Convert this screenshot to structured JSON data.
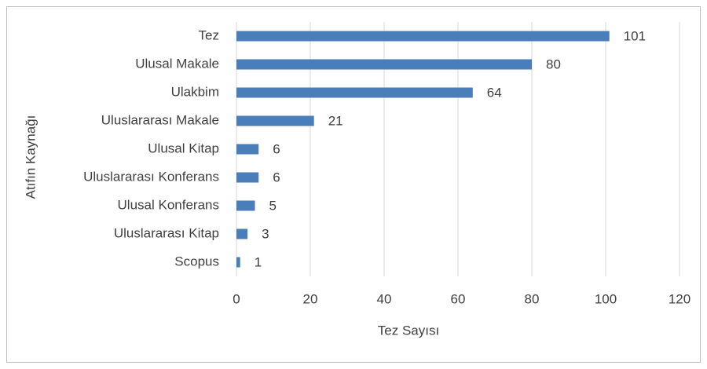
{
  "chart_data": {
    "type": "bar",
    "orientation": "horizontal",
    "categories": [
      "Tez",
      "Ulusal Makale",
      "Ulakbim",
      "Uluslararası Makale",
      "Ulusal Kitap",
      "Uluslararası Konferans",
      "Ulusal Konferans",
      "Uluslararası Kitap",
      "Scopus"
    ],
    "values": [
      101,
      80,
      64,
      21,
      6,
      6,
      5,
      3,
      1
    ],
    "color": "#4a7ebb",
    "xlabel": "Tez Sayısı",
    "ylabel": "Atıfın Kaynağı",
    "xlim": [
      0,
      120
    ],
    "xticks": [
      0,
      20,
      40,
      60,
      80,
      100,
      120
    ],
    "grid": true
  }
}
